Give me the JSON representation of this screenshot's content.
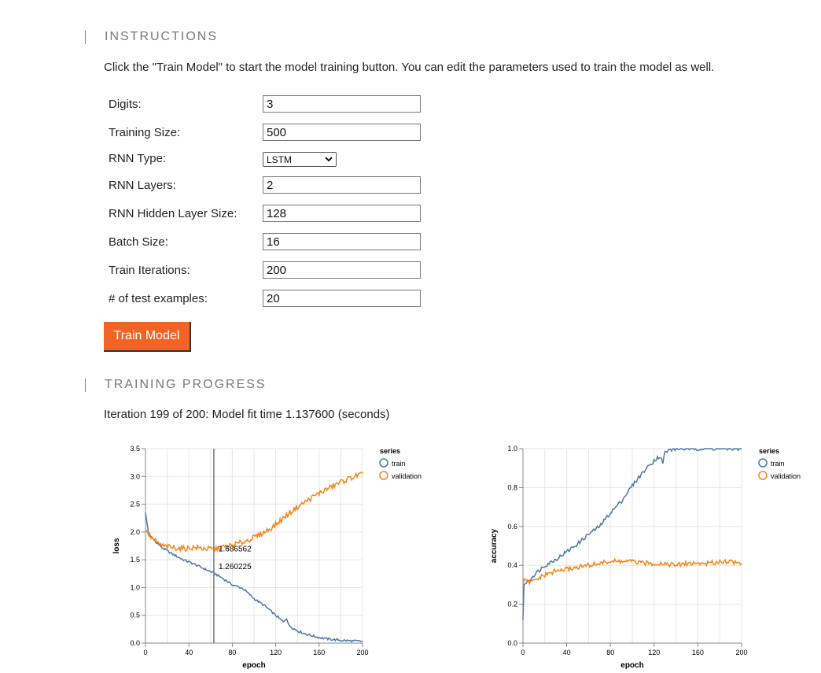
{
  "instructions": {
    "title": "INSTRUCTIONS",
    "text": "Click the \"Train Model\" to start the model training button. You can edit the parameters used to train the model as well."
  },
  "params": {
    "digits": {
      "label": "Digits:",
      "value": "3"
    },
    "training_size": {
      "label": "Training Size:",
      "value": "500"
    },
    "rnn_type": {
      "label": "RNN Type:",
      "value": "LSTM"
    },
    "rnn_layers": {
      "label": "RNN Layers:",
      "value": "2"
    },
    "hidden_size": {
      "label": "RNN Hidden Layer Size:",
      "value": "128"
    },
    "batch_size": {
      "label": "Batch Size:",
      "value": "16"
    },
    "train_iterations": {
      "label": "Train Iterations:",
      "value": "200"
    },
    "test_examples": {
      "label": "# of test examples:",
      "value": "20"
    }
  },
  "train_button": {
    "label": "Train Model"
  },
  "progress": {
    "title": "TRAINING PROGRESS",
    "status": "Iteration 199 of 200: Model fit time 1.137600 (seconds)"
  },
  "colors": {
    "accent": "#f26426",
    "train": "#4c78a8",
    "validation": "#f58518"
  },
  "chart_data": [
    {
      "type": "line",
      "xlabel": "epoch",
      "ylabel": "loss",
      "xlim": [
        0,
        200
      ],
      "ylim": [
        0,
        3.5
      ],
      "x_ticks": [
        "0",
        "40",
        "80",
        "120",
        "160",
        "200"
      ],
      "y_ticks": [
        "0.0",
        "0.5",
        "1.0",
        "1.5",
        "2.0",
        "2.5",
        "3.0",
        "3.5"
      ],
      "grid": true,
      "legend": {
        "title": "series",
        "placement": "top-right"
      },
      "cursor": {
        "x": 63,
        "labels": [
          "1.686562",
          "1.260225"
        ]
      },
      "series": [
        {
          "name": "train",
          "color": "#4c78a8",
          "x": [
            0,
            3,
            8,
            15,
            25,
            35,
            45,
            55,
            63,
            70,
            80,
            90,
            100,
            110,
            120,
            127,
            130,
            132,
            140,
            150,
            160,
            170,
            180,
            190,
            200
          ],
          "y": [
            2.35,
            1.95,
            1.85,
            1.72,
            1.6,
            1.5,
            1.42,
            1.33,
            1.26,
            1.18,
            1.05,
            0.98,
            0.8,
            0.67,
            0.5,
            0.38,
            0.45,
            0.32,
            0.22,
            0.15,
            0.1,
            0.07,
            0.05,
            0.04,
            0.03
          ]
        },
        {
          "name": "validation",
          "color": "#f58518",
          "x": [
            0,
            3,
            8,
            15,
            25,
            35,
            45,
            55,
            63,
            70,
            80,
            90,
            100,
            110,
            120,
            130,
            140,
            150,
            160,
            170,
            180,
            190,
            200
          ],
          "y": [
            2.05,
            1.95,
            1.85,
            1.75,
            1.72,
            1.7,
            1.72,
            1.7,
            1.69,
            1.72,
            1.76,
            1.82,
            1.9,
            2.0,
            2.13,
            2.3,
            2.45,
            2.58,
            2.7,
            2.8,
            2.9,
            2.98,
            3.05
          ]
        }
      ]
    },
    {
      "type": "line",
      "xlabel": "epoch",
      "ylabel": "accuracy",
      "xlim": [
        0,
        200
      ],
      "ylim": [
        0,
        1
      ],
      "x_ticks": [
        "0",
        "40",
        "80",
        "120",
        "160",
        "200"
      ],
      "y_ticks": [
        "0.0",
        "0.2",
        "0.4",
        "0.6",
        "0.8",
        "1.0"
      ],
      "grid": true,
      "legend": {
        "title": "series",
        "placement": "top-right"
      },
      "series": [
        {
          "name": "train",
          "color": "#4c78a8",
          "x": [
            0,
            1,
            5,
            10,
            20,
            30,
            40,
            50,
            60,
            70,
            80,
            90,
            100,
            110,
            115,
            120,
            125,
            128,
            130,
            133,
            140,
            150,
            160,
            170,
            180,
            190,
            200
          ],
          "y": [
            0.12,
            0.3,
            0.32,
            0.35,
            0.4,
            0.43,
            0.47,
            0.51,
            0.56,
            0.6,
            0.67,
            0.73,
            0.81,
            0.88,
            0.91,
            0.94,
            0.96,
            0.93,
            0.98,
            0.99,
            1.0,
            1.0,
            1.0,
            1.0,
            1.0,
            1.0,
            1.0
          ]
        },
        {
          "name": "validation",
          "color": "#f58518",
          "x": [
            0,
            1,
            5,
            10,
            20,
            30,
            40,
            50,
            60,
            70,
            80,
            90,
            100,
            110,
            120,
            130,
            140,
            150,
            160,
            170,
            180,
            190,
            200
          ],
          "y": [
            0.3,
            0.33,
            0.31,
            0.32,
            0.35,
            0.37,
            0.38,
            0.39,
            0.4,
            0.41,
            0.42,
            0.42,
            0.42,
            0.41,
            0.41,
            0.41,
            0.4,
            0.41,
            0.41,
            0.41,
            0.42,
            0.42,
            0.41
          ]
        }
      ]
    }
  ]
}
